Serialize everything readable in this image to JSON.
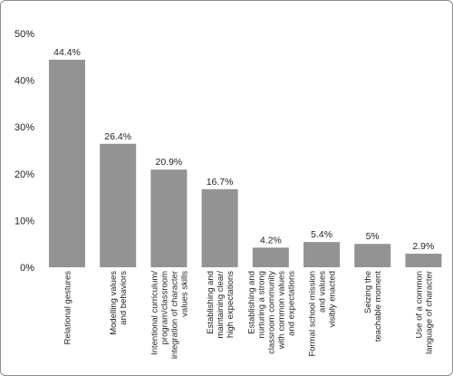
{
  "chart_data": {
    "type": "bar",
    "title": "",
    "xlabel": "",
    "ylabel": "",
    "ylim": [
      0,
      50
    ],
    "yticks": [
      "50%",
      "40%",
      "30%",
      "20%",
      "10%",
      "0%"
    ],
    "bar_color": "#939393",
    "grid": false,
    "categories": [
      [
        "Relational gestures"
      ],
      [
        "Modelling values",
        "and behaviors"
      ],
      [
        "Intentional curriculum/",
        "program/classroom",
        "integration of character",
        "values skills"
      ],
      [
        "Establishing and",
        "maintaining clear/",
        "high expectations"
      ],
      [
        "Establishing and",
        "nurturing a strong",
        "classroom community",
        "with common values",
        "and expectations"
      ],
      [
        "Formal school mission",
        "and values",
        "visibly enacted"
      ],
      [
        "Seizing the",
        "teachable moment"
      ],
      [
        "Use of a common",
        "language of character"
      ]
    ],
    "values": [
      44.4,
      26.4,
      20.9,
      16.7,
      4.2,
      5.4,
      5.0,
      2.9
    ],
    "value_labels": [
      "44.4%",
      "26.4%",
      "20.9%",
      "16.7%",
      "4.2%",
      "5.4%",
      "5%",
      "2.9%"
    ]
  }
}
